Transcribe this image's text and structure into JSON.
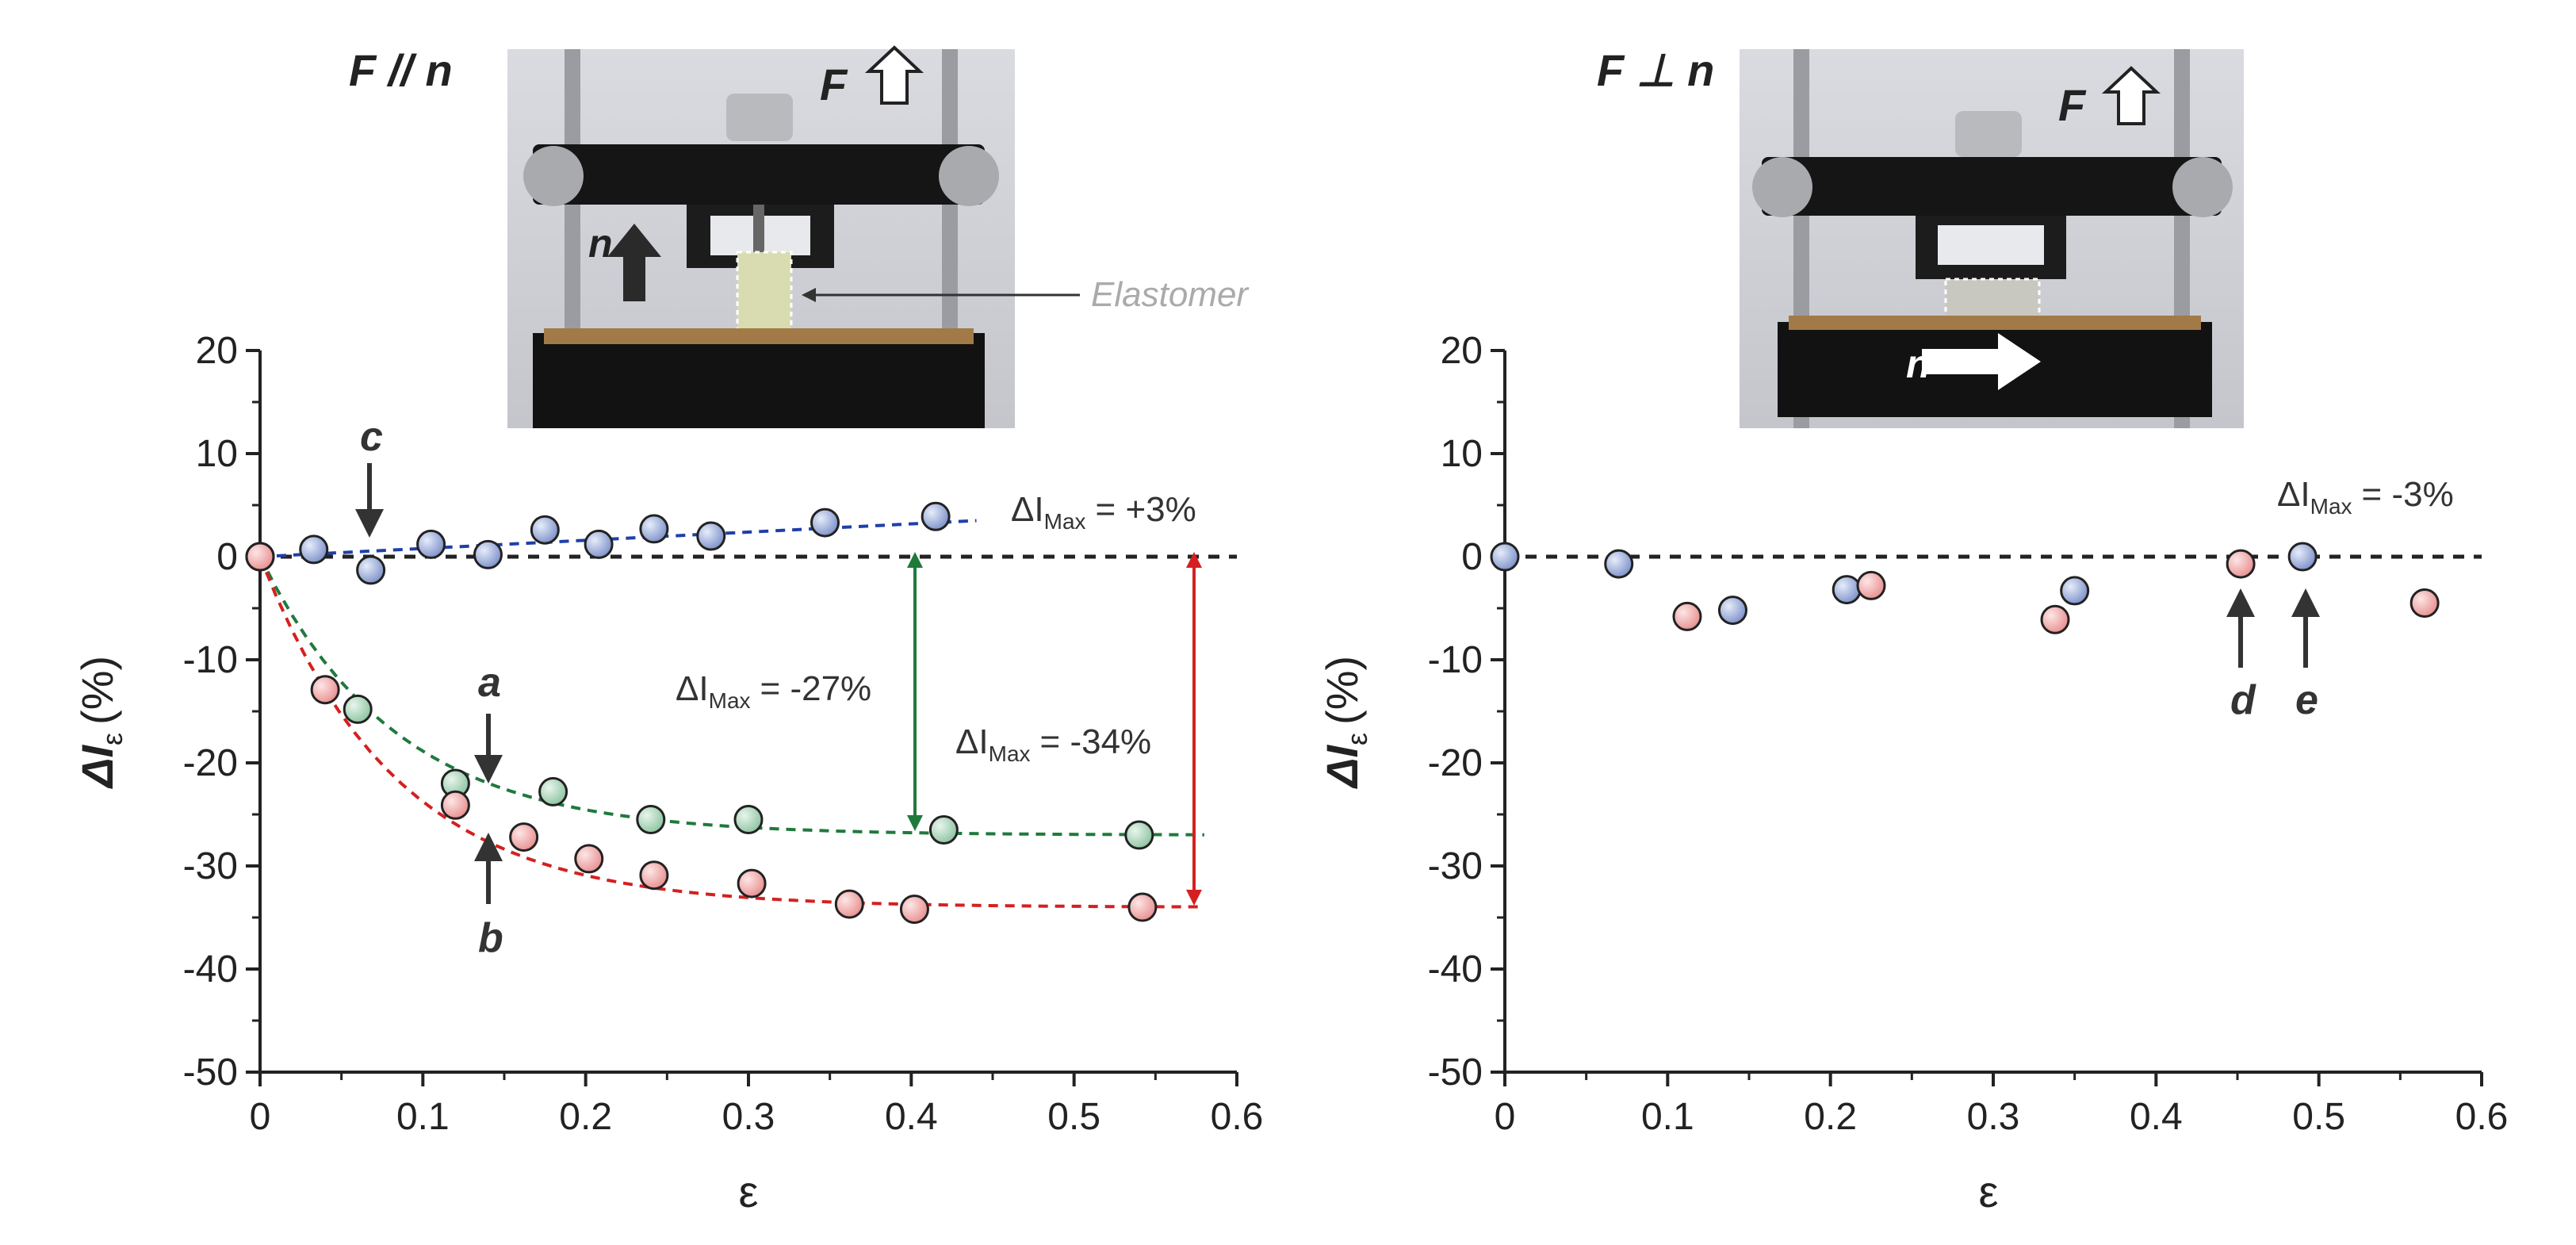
{
  "chart_data": [
    {
      "type": "scatter",
      "panel_label": "F // n",
      "photo_labels": {
        "force": "F",
        "normal": "n",
        "elastomer": "Elastomer"
      },
      "xlabel": "ε",
      "ylabel": "ΔI",
      "ylabel_sub": "ε",
      "ylabel_unit": "(%)",
      "xlim": [
        0,
        0.6
      ],
      "ylim": [
        -50,
        20
      ],
      "xticks": [
        "0",
        "0.1",
        "0.2",
        "0.3",
        "0.4",
        "0.5",
        "0.6"
      ],
      "yticks": [
        "20",
        "10",
        "0",
        "-10",
        "-20",
        "-30",
        "-40",
        "-50"
      ],
      "reference_line": 0,
      "series": [
        {
          "color": "#8fa3d6",
          "fit_color": "#1f3fa8",
          "x": [
            0,
            0.033,
            0.068,
            0.105,
            0.14,
            0.175,
            0.208,
            0.242,
            0.277,
            0.347,
            0.415
          ],
          "y": [
            0,
            0.7,
            -1.3,
            1.2,
            0.2,
            2.6,
            1.2,
            2.7,
            2.0,
            3.3,
            3.9
          ],
          "fit": {
            "x": [
              0,
              0.44
            ],
            "y": [
              0,
              3.5
            ]
          }
        },
        {
          "color": "#a8d3b5",
          "fit_color": "#1f7a3c",
          "x": [
            0,
            0.06,
            0.12,
            0.18,
            0.24,
            0.3,
            0.42,
            0.54
          ],
          "y": [
            0,
            -14.8,
            -22.0,
            -22.8,
            -25.5,
            -25.5,
            -26.5,
            -27.0
          ],
          "fit": {
            "type": "exponential",
            "x": [
              0,
              0.58
            ],
            "plateau": -27
          }
        },
        {
          "color": "#f0a6a6",
          "fit_color": "#d42020",
          "x": [
            0,
            0.04,
            0.12,
            0.162,
            0.202,
            0.242,
            0.302,
            0.362,
            0.402,
            0.542
          ],
          "y": [
            0,
            -12.9,
            -24.1,
            -27.2,
            -29.3,
            -30.9,
            -31.7,
            -33.7,
            -34.2,
            -34.0
          ],
          "fit": {
            "type": "exponential",
            "x": [
              0,
              0.58
            ],
            "plateau": -34
          }
        }
      ],
      "annotations": [
        {
          "text": "ΔI",
          "sub": "Max",
          "value": "= +3%"
        },
        {
          "text": "ΔI",
          "sub": "Max",
          "value": "= -27%"
        },
        {
          "text": "ΔI",
          "sub": "Max",
          "value": "= -34%"
        }
      ],
      "arrow_labels": [
        "a",
        "b",
        "c"
      ]
    },
    {
      "type": "scatter",
      "panel_label": "F ⊥ n",
      "photo_labels": {
        "force": "F",
        "normal": "n"
      },
      "xlabel": "ε",
      "ylabel": "ΔI",
      "ylabel_sub": "ε",
      "ylabel_unit": "(%)",
      "xlim": [
        0,
        0.6
      ],
      "ylim": [
        -50,
        20
      ],
      "xticks": [
        "0",
        "0.1",
        "0.2",
        "0.3",
        "0.4",
        "0.5",
        "0.6"
      ],
      "yticks": [
        "20",
        "10",
        "0",
        "-10",
        "-20",
        "-30",
        "-40",
        "-50"
      ],
      "reference_line": 0,
      "series": [
        {
          "color": "#8fa3d6",
          "x": [
            0,
            0.07,
            0.14,
            0.21,
            0.35,
            0.49
          ],
          "y": [
            0,
            -0.7,
            -5.2,
            -3.2,
            -3.3,
            0
          ],
          "fit": null
        },
        {
          "color": "#f0a6a6",
          "x": [
            0.112,
            0.225,
            0.338,
            0.452,
            0.565
          ],
          "y": [
            -5.8,
            -2.8,
            -6.1,
            -0.7,
            -4.5
          ],
          "fit": null
        }
      ],
      "annotations": [
        {
          "text": "ΔI",
          "sub": "Max",
          "value": "= -3%"
        }
      ],
      "arrow_labels": [
        "d",
        "e"
      ]
    }
  ]
}
